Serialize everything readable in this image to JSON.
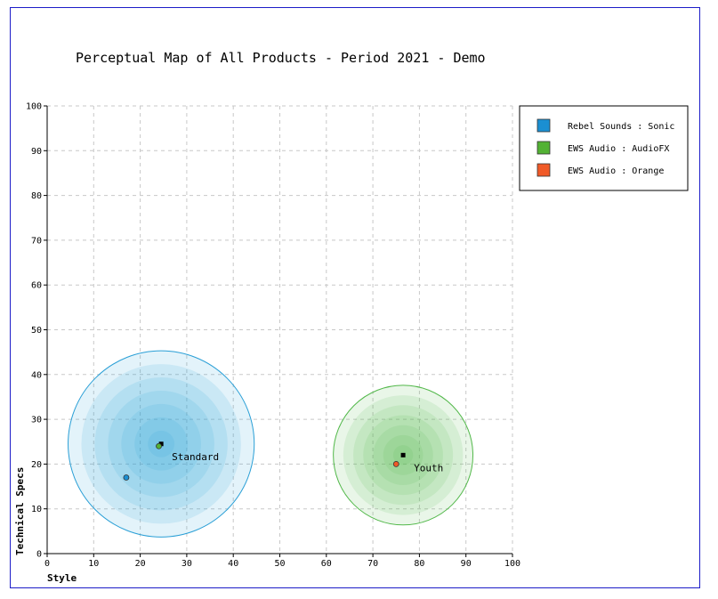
{
  "chart_data": {
    "type": "scatter",
    "title": "Perceptual Map of All Products - Period 2021 - Demo",
    "xlabel": "Style",
    "ylabel": "Technical Specs",
    "xlim": [
      0,
      100
    ],
    "ylim": [
      0,
      100
    ],
    "xticks": [
      "0",
      "10",
      "20",
      "30",
      "40",
      "50",
      "60",
      "70",
      "80",
      "90",
      "100"
    ],
    "yticks": [
      "0",
      "10",
      "20",
      "30",
      "40",
      "50",
      "60",
      "70",
      "80",
      "90",
      "100"
    ],
    "grid": true,
    "legend_position": "right",
    "segments": [
      {
        "label": "Standard",
        "center": [
          24.5,
          24.5
        ],
        "radius": 20,
        "color": "#2a9fd6",
        "ideal": [
          24.5,
          24.5
        ]
      },
      {
        "label": "Youth",
        "center": [
          76.5,
          22
        ],
        "radius": 15,
        "color": "#52b84a",
        "ideal": [
          76.5,
          22
        ]
      }
    ],
    "series": [
      {
        "name": "Rebel Sounds : Sonic",
        "color": "#1b8fd2",
        "x": 17,
        "y": 17
      },
      {
        "name": "EWS Audio : AudioFX",
        "color": "#53b234",
        "x": 24,
        "y": 24
      },
      {
        "name": "EWS Audio : Orange",
        "color": "#f05a28",
        "x": 75,
        "y": 20
      }
    ]
  }
}
